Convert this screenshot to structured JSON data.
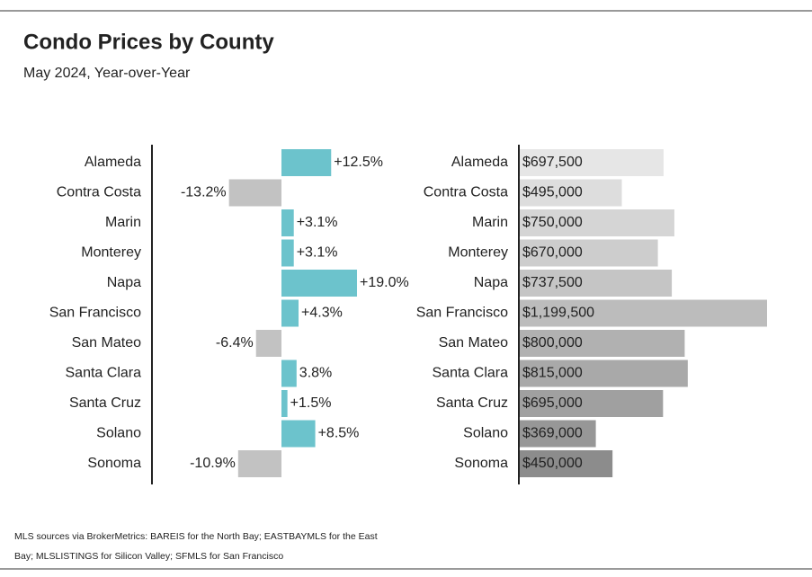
{
  "header": {
    "title": "Condo Prices by County",
    "subtitle": "May 2024, Year-over-Year"
  },
  "source": [
    "MLS sources via BrokerMetrics: BAREIS for the North Bay; EASTBAYMLS for the East",
    "Bay; MLSLISTINGS for Silicon Valley; SFMLS for San Francisco"
  ],
  "chart_data": [
    {
      "type": "bar",
      "orientation": "horizontal",
      "categories": [
        "Alameda",
        "Contra Costa",
        "Marin",
        "Monterey",
        "Napa",
        "San Francisco",
        "San Mateo",
        "Santa Clara",
        "Santa Cruz",
        "Solano",
        "Sonoma"
      ],
      "values": [
        12.5,
        -13.2,
        3.1,
        3.1,
        19.0,
        4.3,
        -6.4,
        3.8,
        1.5,
        8.5,
        -10.9
      ],
      "value_labels": [
        "+12.5%",
        "-13.2%",
        "+3.1%",
        "+3.1%",
        "+19.0%",
        "+4.3%",
        "-6.4%",
        "3.8%",
        "+1.5%",
        "+8.5%",
        "-10.9%"
      ],
      "colors": [
        "#6cc3cc",
        "#c2c2c2",
        "#6cc3cc",
        "#6cc3cc",
        "#6cc3cc",
        "#6cc3cc",
        "#c2c2c2",
        "#6cc3cc",
        "#6cc3cc",
        "#6cc3cc",
        "#c2c2c2"
      ]
    },
    {
      "type": "bar",
      "orientation": "horizontal",
      "categories": [
        "Alameda",
        "Contra Costa",
        "Marin",
        "Monterey",
        "Napa",
        "San Francisco",
        "San Mateo",
        "Santa Clara",
        "Santa Cruz",
        "Solano",
        "Sonoma"
      ],
      "values": [
        697500,
        495000,
        750000,
        670000,
        737500,
        1199500,
        800000,
        815000,
        695000,
        369000,
        450000
      ],
      "value_labels": [
        "$697,500",
        "$495,000",
        "$750,000",
        "$670,000",
        "$737,500",
        "$1,199,500",
        "$800,000",
        "$815,000",
        "$695,000",
        "$369,000",
        "$450,000"
      ],
      "colors": [
        "#e6e6e6",
        "#dddddd",
        "#d5d5d5",
        "#cdcdcd",
        "#c5c5c5",
        "#bcbcbc",
        "#b1b1b1",
        "#a9a9a9",
        "#a0a0a0",
        "#979797",
        "#8c8c8c"
      ]
    }
  ]
}
